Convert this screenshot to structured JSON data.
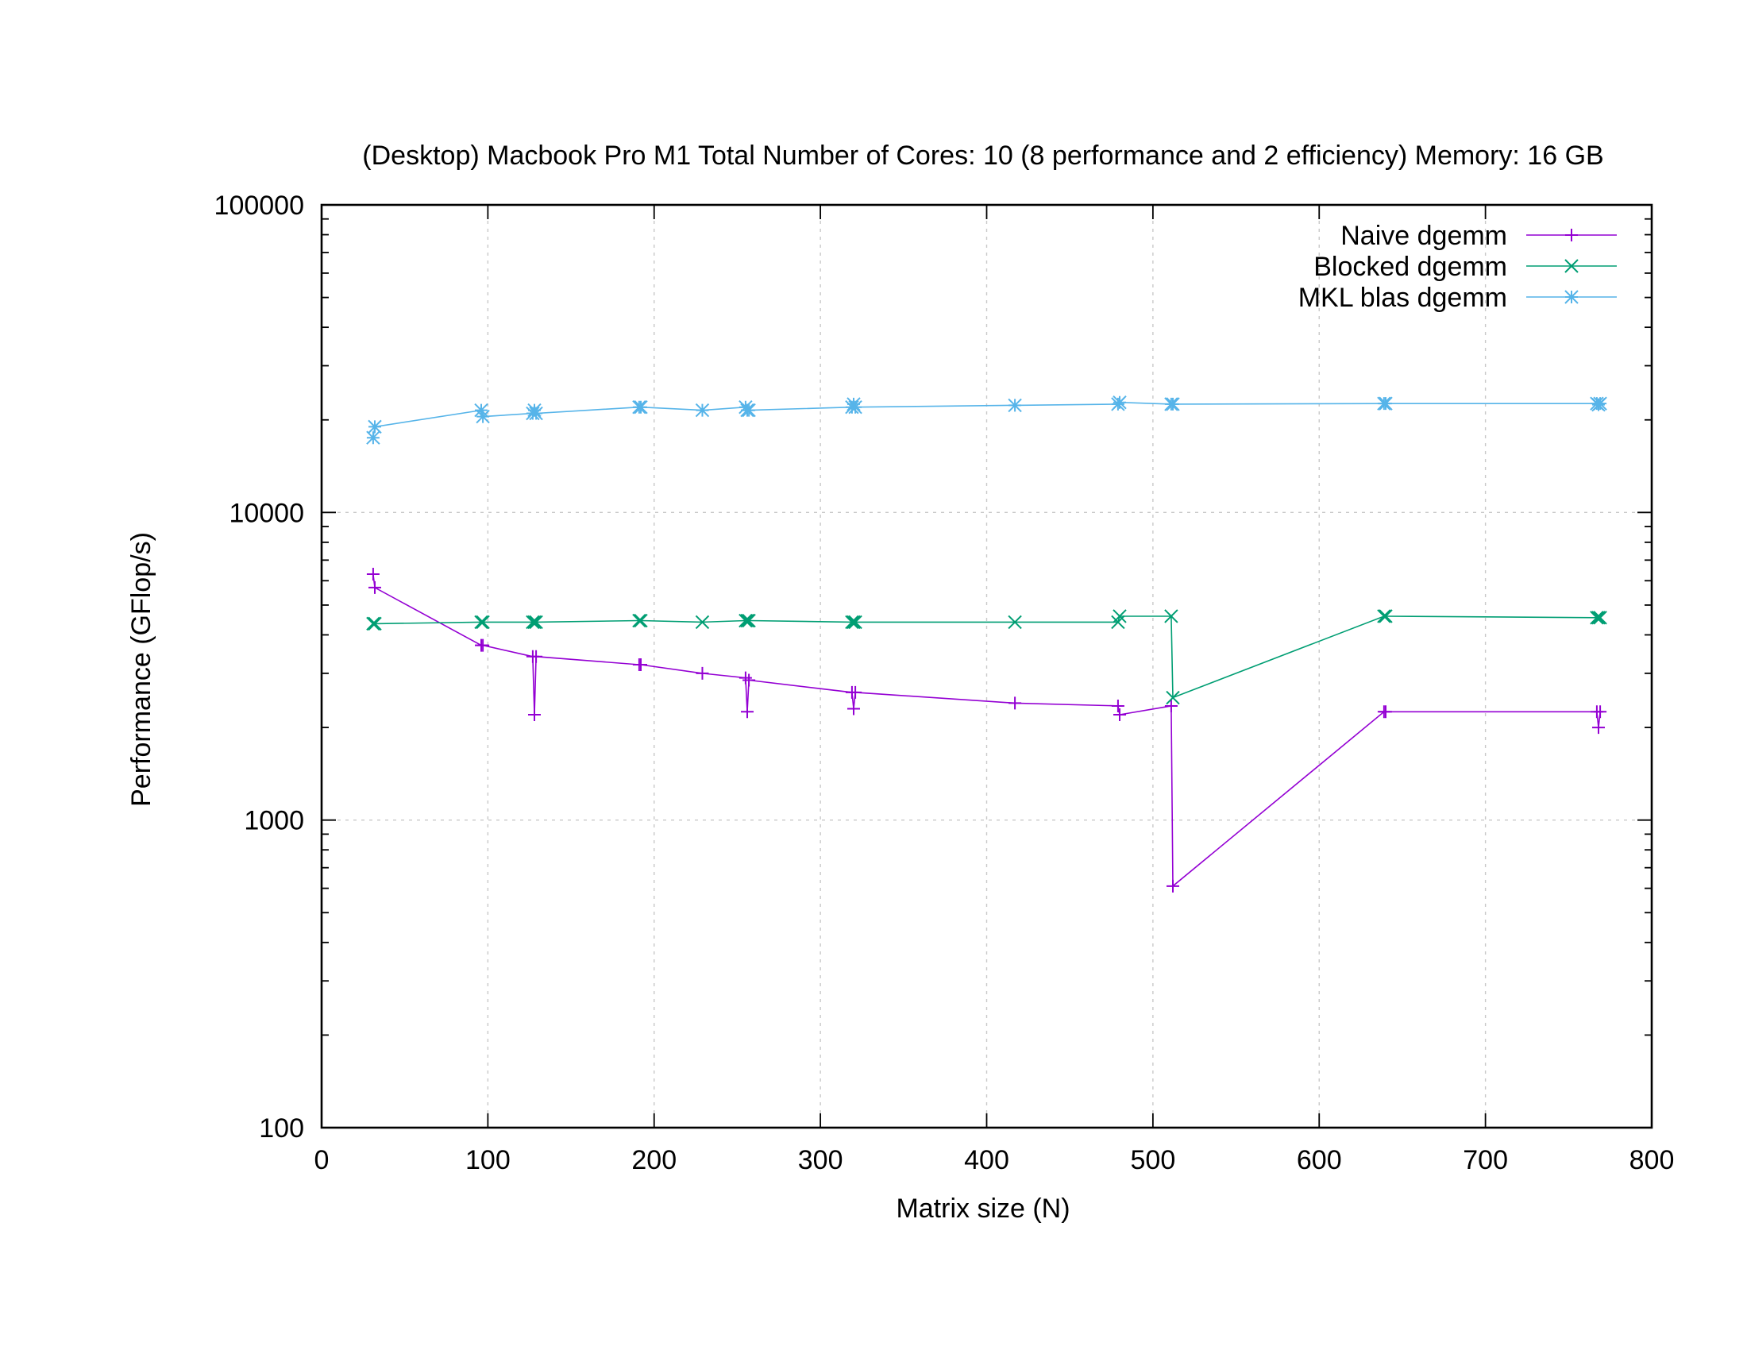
{
  "chart_data": {
    "type": "line",
    "title": "(Desktop) Macbook Pro M1 Total Number of Cores: 10 (8 performance and 2 efficiency) Memory: 16 GB",
    "xlabel": "Matrix size (N)",
    "ylabel": "Performance (GFlop/s)",
    "xlim": [
      0,
      800
    ],
    "ylim": [
      100,
      100000
    ],
    "y_scale": "log",
    "grid": true,
    "legend_position": "top-right",
    "x_ticks": [
      "0",
      "100",
      "200",
      "300",
      "400",
      "500",
      "600",
      "700",
      "800"
    ],
    "x_tick_values": [
      0,
      100,
      200,
      300,
      400,
      500,
      600,
      700,
      800
    ],
    "y_ticks": [
      "100",
      "1000",
      "10000",
      "100000"
    ],
    "y_tick_values": [
      100,
      1000,
      10000,
      100000
    ],
    "series": [
      {
        "name": "Naive dgemm",
        "color": "#9400d3",
        "marker": "plus",
        "points": [
          [
            31,
            6300
          ],
          [
            32,
            5700
          ],
          [
            96,
            3700
          ],
          [
            97,
            3700
          ],
          [
            127,
            3400
          ],
          [
            128,
            2200
          ],
          [
            129,
            3400
          ],
          [
            191,
            3200
          ],
          [
            192,
            3200
          ],
          [
            229,
            3000
          ],
          [
            255,
            2900
          ],
          [
            256,
            2250
          ],
          [
            257,
            2850
          ],
          [
            319,
            2600
          ],
          [
            320,
            2300
          ],
          [
            321,
            2600
          ],
          [
            417,
            2400
          ],
          [
            479,
            2350
          ],
          [
            480,
            2200
          ],
          [
            511,
            2350
          ],
          [
            512,
            610
          ],
          [
            639,
            2250
          ],
          [
            640,
            2250
          ],
          [
            767,
            2250
          ],
          [
            768,
            2000
          ],
          [
            769,
            2250
          ]
        ]
      },
      {
        "name": "Blocked dgemm",
        "color": "#009e73",
        "marker": "cross",
        "points": [
          [
            31,
            4350
          ],
          [
            32,
            4350
          ],
          [
            96,
            4400
          ],
          [
            97,
            4400
          ],
          [
            127,
            4400
          ],
          [
            128,
            4400
          ],
          [
            129,
            4400
          ],
          [
            191,
            4450
          ],
          [
            192,
            4450
          ],
          [
            229,
            4400
          ],
          [
            255,
            4450
          ],
          [
            256,
            4450
          ],
          [
            257,
            4450
          ],
          [
            319,
            4400
          ],
          [
            320,
            4400
          ],
          [
            321,
            4400
          ],
          [
            417,
            4400
          ],
          [
            479,
            4400
          ],
          [
            480,
            4600
          ],
          [
            511,
            4600
          ],
          [
            512,
            2500
          ],
          [
            639,
            4600
          ],
          [
            640,
            4600
          ],
          [
            767,
            4550
          ],
          [
            768,
            4550
          ],
          [
            769,
            4550
          ]
        ]
      },
      {
        "name": "MKL blas dgemm",
        "color": "#56b4e9",
        "marker": "star",
        "points": [
          [
            31,
            17500
          ],
          [
            32,
            19000
          ],
          [
            96,
            21500
          ],
          [
            97,
            20500
          ],
          [
            127,
            21000
          ],
          [
            128,
            21500
          ],
          [
            129,
            21000
          ],
          [
            191,
            22000
          ],
          [
            192,
            22000
          ],
          [
            229,
            21500
          ],
          [
            255,
            22000
          ],
          [
            256,
            21500
          ],
          [
            257,
            21500
          ],
          [
            319,
            22000
          ],
          [
            320,
            22500
          ],
          [
            321,
            22000
          ],
          [
            417,
            22300
          ],
          [
            479,
            22500
          ],
          [
            480,
            22800
          ],
          [
            511,
            22500
          ],
          [
            512,
            22500
          ],
          [
            639,
            22600
          ],
          [
            640,
            22600
          ],
          [
            767,
            22600
          ],
          [
            768,
            22400
          ],
          [
            769,
            22600
          ]
        ]
      }
    ]
  }
}
